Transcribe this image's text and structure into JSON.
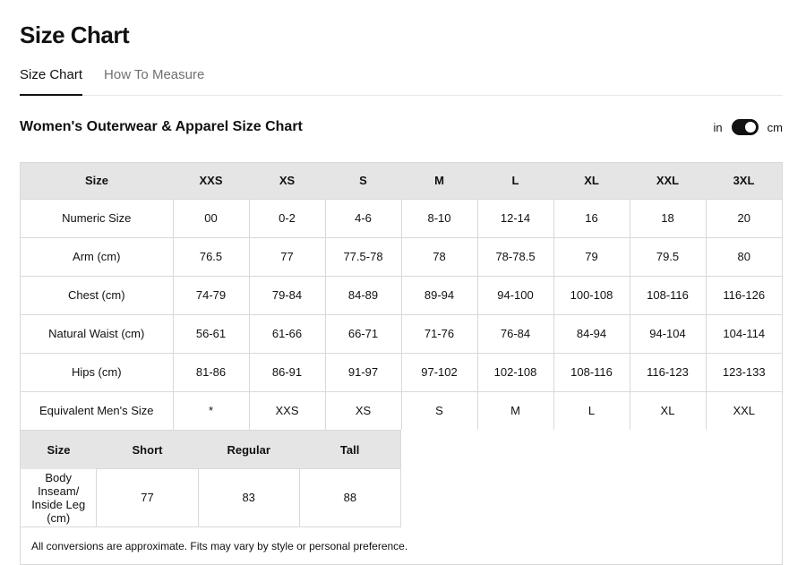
{
  "page": {
    "title": "Size Chart",
    "tabs": {
      "size_chart": "Size Chart",
      "how_to_measure": "How To Measure"
    },
    "section_title": "Women's Outerwear & Apparel Size Chart",
    "unit_toggle": {
      "left_label": "in",
      "right_label": "cm",
      "selected": "cm",
      "toggle_color": "#111111"
    },
    "footnote": "All conversions are approximate. Fits may vary by style or personal preference.",
    "colors": {
      "header_background": "#e5e5e5",
      "border": "#d9d9d9",
      "inactive_tab": "#707072",
      "text": "#111111"
    }
  },
  "chart_data": {
    "type": "table",
    "title": "Women's Outerwear & Apparel Size Chart",
    "unit": "cm",
    "main_table": {
      "columns": [
        "Size",
        "XXS",
        "XS",
        "S",
        "M",
        "L",
        "XL",
        "XXL",
        "3XL"
      ],
      "rows": [
        {
          "label": "Numeric Size",
          "values": [
            "00",
            "0-2",
            "4-6",
            "8-10",
            "12-14",
            "16",
            "18",
            "20"
          ]
        },
        {
          "label": "Arm (cm)",
          "values": [
            "76.5",
            "77",
            "77.5-78",
            "78",
            "78-78.5",
            "79",
            "79.5",
            "80"
          ]
        },
        {
          "label": "Chest (cm)",
          "values": [
            "74-79",
            "79-84",
            "84-89",
            "89-94",
            "94-100",
            "100-108",
            "108-116",
            "116-126"
          ]
        },
        {
          "label": "Natural Waist (cm)",
          "values": [
            "56-61",
            "61-66",
            "66-71",
            "71-76",
            "76-84",
            "84-94",
            "94-104",
            "104-114"
          ]
        },
        {
          "label": "Hips (cm)",
          "values": [
            "81-86",
            "86-91",
            "91-97",
            "97-102",
            "102-108",
            "108-116",
            "116-123",
            "123-133"
          ]
        },
        {
          "label": "Equivalent Men's Size",
          "values": [
            "*",
            "XXS",
            "XS",
            "S",
            "M",
            "L",
            "XL",
            "XXL"
          ]
        }
      ]
    },
    "length_table": {
      "columns": [
        "Size",
        "Short",
        "Regular",
        "Tall"
      ],
      "rows": [
        {
          "label": "Body Inseam/ Inside Leg (cm)",
          "values": [
            "77",
            "83",
            "88"
          ]
        }
      ]
    }
  }
}
